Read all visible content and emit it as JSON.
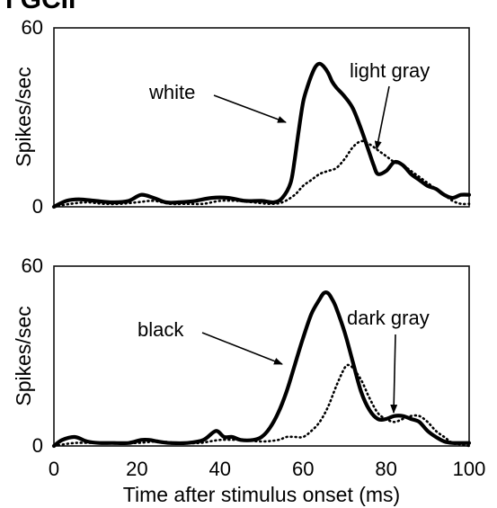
{
  "header_fragment": "I GCII",
  "chart_data": [
    {
      "type": "line",
      "xlim": [
        0,
        100
      ],
      "ylim": [
        0,
        60
      ],
      "ylabel": "Spikes/sec",
      "yticks": [
        "0",
        "60"
      ],
      "grid": false,
      "series": [
        {
          "name": "white",
          "style": "solid",
          "x": [
            0,
            3,
            6,
            10,
            14,
            18,
            21,
            24,
            27,
            30,
            34,
            38,
            42,
            46,
            50,
            53,
            55,
            57,
            58,
            59,
            60,
            61,
            62,
            63,
            64,
            65,
            66,
            67,
            68,
            70,
            72,
            74,
            76,
            77,
            78,
            80,
            82,
            84,
            86,
            88,
            90,
            92,
            94,
            96,
            98,
            100
          ],
          "y": [
            0,
            2,
            2.5,
            2,
            1.5,
            2,
            4,
            3,
            1.5,
            1.5,
            2,
            3,
            3,
            2,
            2,
            1.5,
            3,
            8,
            16,
            26,
            35,
            40,
            44,
            47,
            48,
            47,
            45,
            42,
            40,
            37,
            33,
            26,
            18,
            14,
            11,
            12,
            15,
            14,
            11,
            9,
            7,
            6,
            4,
            3,
            4,
            4
          ]
        },
        {
          "name": "light gray",
          "style": "dotted",
          "x": [
            0,
            4,
            8,
            12,
            16,
            20,
            24,
            28,
            32,
            36,
            40,
            44,
            48,
            52,
            55,
            58,
            60,
            62,
            64,
            66,
            68,
            70,
            72,
            74,
            76,
            78,
            80,
            82,
            84,
            86,
            88,
            90,
            92,
            94,
            96,
            98,
            100
          ],
          "y": [
            0,
            1,
            1.5,
            1,
            1,
            1.5,
            2,
            1,
            1,
            1,
            2,
            2,
            1.5,
            1,
            1.5,
            4,
            7,
            9,
            11,
            12,
            13,
            16,
            20,
            22,
            21,
            19,
            17,
            15,
            14,
            12,
            10,
            8,
            6,
            4,
            2,
            1,
            1
          ]
        }
      ],
      "annotations": [
        "white",
        "light gray"
      ]
    },
    {
      "type": "line",
      "xlim": [
        0,
        100
      ],
      "ylim": [
        0,
        60
      ],
      "xlabel": "Time after stimulus onset (ms)",
      "ylabel": "Spikes/sec",
      "xticks": [
        "0",
        "20",
        "40",
        "60",
        "80",
        "100"
      ],
      "yticks": [
        "0",
        "60"
      ],
      "grid": false,
      "series": [
        {
          "name": "black",
          "style": "solid",
          "x": [
            0,
            2,
            5,
            8,
            11,
            14,
            18,
            21,
            23,
            25,
            28,
            32,
            36,
            39,
            41,
            43,
            45,
            48,
            50,
            52,
            54,
            56,
            58,
            60,
            62,
            64,
            65,
            66,
            67,
            68,
            70,
            72,
            74,
            76,
            78,
            80,
            82,
            84,
            86,
            88,
            90,
            92,
            94,
            96,
            98,
            100
          ],
          "y": [
            0,
            2,
            3,
            1.5,
            1,
            1,
            1,
            2,
            2,
            1.5,
            1,
            1,
            2,
            5,
            3,
            3,
            2,
            2,
            3,
            6,
            11,
            18,
            27,
            36,
            44,
            49,
            51,
            51,
            49,
            46,
            38,
            28,
            18,
            12,
            9,
            9,
            10,
            10,
            9,
            8,
            5,
            3,
            1.5,
            1,
            1,
            1
          ]
        },
        {
          "name": "dark gray",
          "style": "dotted",
          "x": [
            0,
            5,
            10,
            15,
            20,
            25,
            30,
            35,
            40,
            45,
            50,
            54,
            56,
            58,
            60,
            62,
            64,
            66,
            68,
            70,
            71,
            72,
            74,
            76,
            78,
            80,
            82,
            84,
            86,
            88,
            90,
            92,
            94,
            96,
            98,
            100
          ],
          "y": [
            0,
            1,
            1,
            1,
            1,
            1.5,
            1,
            1,
            2,
            2,
            1.5,
            2,
            3,
            3,
            3,
            5,
            8,
            13,
            20,
            26,
            27,
            26,
            22,
            16,
            11,
            9,
            8,
            9,
            10,
            10,
            8,
            5,
            3,
            1,
            0.5,
            0
          ]
        }
      ],
      "annotations": [
        "black",
        "dark gray"
      ]
    }
  ]
}
